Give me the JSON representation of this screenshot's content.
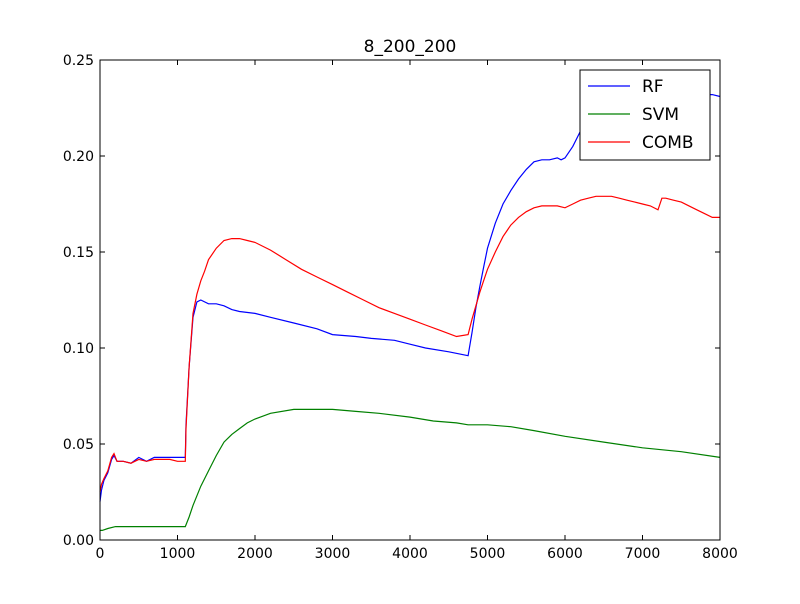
{
  "chart_data": {
    "type": "line",
    "title": "8_200_200",
    "xlabel": "",
    "ylabel": "",
    "xlim": [
      0,
      8000
    ],
    "ylim": [
      0,
      0.25
    ],
    "x_ticks": [
      0,
      1000,
      2000,
      3000,
      4000,
      5000,
      6000,
      7000,
      8000
    ],
    "x_tick_labels": [
      "0",
      "1000",
      "2000",
      "3000",
      "4000",
      "5000",
      "6000",
      "7000",
      "8000"
    ],
    "y_ticks": [
      0,
      0.05,
      0.1,
      0.15,
      0.2,
      0.25
    ],
    "y_tick_labels": [
      "0.00",
      "0.05",
      "0.10",
      "0.15",
      "0.20",
      "0.25"
    ],
    "grid": false,
    "legend_position": "top-right",
    "series": [
      {
        "name": "RF",
        "color": "#0000ff",
        "x": [
          0,
          20,
          50,
          100,
          150,
          180,
          220,
          300,
          400,
          500,
          600,
          700,
          800,
          900,
          1000,
          1100,
          1110,
          1150,
          1200,
          1250,
          1300,
          1400,
          1500,
          1600,
          1700,
          1800,
          2000,
          2200,
          2500,
          2800,
          3000,
          3300,
          3500,
          3800,
          4000,
          4200,
          4500,
          4750,
          4800,
          4850,
          4900,
          4950,
          5000,
          5100,
          5200,
          5300,
          5400,
          5500,
          5600,
          5700,
          5800,
          5900,
          5950,
          6000,
          6100,
          6200,
          6300,
          6400,
          6500,
          6600,
          6700,
          6800,
          6900,
          7000,
          7100,
          7200,
          7300,
          7400,
          7500,
          7600,
          7700,
          7800,
          7900,
          8000
        ],
        "y": [
          0.02,
          0.026,
          0.031,
          0.035,
          0.042,
          0.044,
          0.041,
          0.041,
          0.04,
          0.043,
          0.041,
          0.043,
          0.043,
          0.043,
          0.043,
          0.043,
          0.06,
          0.09,
          0.116,
          0.124,
          0.125,
          0.123,
          0.123,
          0.122,
          0.12,
          0.119,
          0.118,
          0.116,
          0.113,
          0.11,
          0.107,
          0.106,
          0.105,
          0.104,
          0.102,
          0.1,
          0.098,
          0.096,
          0.108,
          0.121,
          0.132,
          0.142,
          0.152,
          0.165,
          0.175,
          0.182,
          0.188,
          0.193,
          0.197,
          0.198,
          0.198,
          0.199,
          0.198,
          0.199,
          0.205,
          0.213,
          0.22,
          0.225,
          0.228,
          0.231,
          0.233,
          0.234,
          0.235,
          0.235,
          0.235,
          0.235,
          0.235,
          0.234,
          0.234,
          0.233,
          0.233,
          0.232,
          0.232,
          0.231
        ]
      },
      {
        "name": "SVM",
        "color": "#008000",
        "x": [
          0,
          30,
          100,
          200,
          300,
          400,
          500,
          600,
          700,
          800,
          900,
          1000,
          1100,
          1150,
          1200,
          1300,
          1400,
          1500,
          1600,
          1700,
          1800,
          1900,
          2000,
          2200,
          2500,
          2800,
          3000,
          3300,
          3600,
          4000,
          4300,
          4600,
          4750,
          5000,
          5300,
          5600,
          6000,
          6500,
          7000,
          7500,
          8000
        ],
        "y": [
          0.005,
          0.005,
          0.006,
          0.007,
          0.007,
          0.007,
          0.007,
          0.007,
          0.007,
          0.007,
          0.007,
          0.007,
          0.007,
          0.012,
          0.018,
          0.028,
          0.036,
          0.044,
          0.051,
          0.055,
          0.058,
          0.061,
          0.063,
          0.066,
          0.068,
          0.068,
          0.068,
          0.067,
          0.066,
          0.064,
          0.062,
          0.061,
          0.06,
          0.06,
          0.059,
          0.057,
          0.054,
          0.051,
          0.048,
          0.046,
          0.043
        ]
      },
      {
        "name": "COMB",
        "color": "#ff0000",
        "x": [
          0,
          20,
          50,
          100,
          150,
          180,
          220,
          300,
          400,
          500,
          600,
          700,
          800,
          900,
          1000,
          1100,
          1110,
          1150,
          1200,
          1250,
          1300,
          1350,
          1400,
          1500,
          1600,
          1700,
          1800,
          1900,
          2000,
          2200,
          2400,
          2600,
          2800,
          3000,
          3200,
          3400,
          3600,
          3800,
          4000,
          4200,
          4400,
          4600,
          4750,
          4800,
          4850,
          4900,
          4950,
          5000,
          5100,
          5200,
          5300,
          5400,
          5500,
          5600,
          5700,
          5800,
          5900,
          6000,
          6100,
          6200,
          6300,
          6400,
          6500,
          6600,
          6700,
          6800,
          6900,
          7000,
          7100,
          7200,
          7250,
          7300,
          7400,
          7500,
          7600,
          7700,
          7800,
          7900,
          8000
        ],
        "y": [
          0.025,
          0.029,
          0.032,
          0.036,
          0.043,
          0.045,
          0.041,
          0.041,
          0.04,
          0.042,
          0.041,
          0.042,
          0.042,
          0.042,
          0.041,
          0.041,
          0.058,
          0.09,
          0.118,
          0.128,
          0.135,
          0.14,
          0.146,
          0.152,
          0.156,
          0.157,
          0.157,
          0.156,
          0.155,
          0.151,
          0.146,
          0.141,
          0.137,
          0.133,
          0.129,
          0.125,
          0.121,
          0.118,
          0.115,
          0.112,
          0.109,
          0.106,
          0.107,
          0.115,
          0.122,
          0.129,
          0.135,
          0.141,
          0.15,
          0.158,
          0.164,
          0.168,
          0.171,
          0.173,
          0.174,
          0.174,
          0.174,
          0.173,
          0.175,
          0.177,
          0.178,
          0.179,
          0.179,
          0.179,
          0.178,
          0.177,
          0.176,
          0.175,
          0.174,
          0.172,
          0.178,
          0.178,
          0.177,
          0.176,
          0.174,
          0.172,
          0.17,
          0.168,
          0.168
        ]
      }
    ]
  }
}
